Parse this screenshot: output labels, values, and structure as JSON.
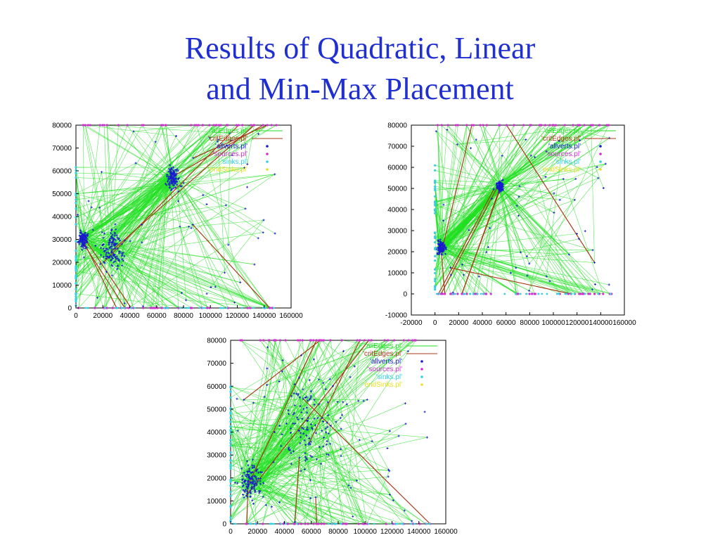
{
  "title": {
    "line1": "Results of Quadratic, Linear",
    "line2": "and Min-Max Placement"
  },
  "chart_data": [
    {
      "type": "scatter",
      "title": "",
      "xlabel": "",
      "ylabel": "",
      "xlim": [
        0,
        160000
      ],
      "ylim": [
        0,
        80000
      ],
      "xticks": [
        0,
        20000,
        40000,
        60000,
        80000,
        100000,
        120000,
        140000,
        160000
      ],
      "yticks": [
        0,
        10000,
        20000,
        30000,
        40000,
        50000,
        60000,
        70000,
        80000
      ],
      "grid": false,
      "legend_position": "top-right",
      "series": [
        {
          "name": "'allEdges.pl'",
          "color": "#22e022"
        },
        {
          "name": "'critEdges.pl'",
          "color": "#a83a1a"
        },
        {
          "name": "'allverts.pl'",
          "color": "#1a1ad0"
        },
        {
          "name": "'sources.pl'",
          "color": "#d030d0"
        },
        {
          "name": "'sinks.pl'",
          "color": "#30d0e0"
        },
        {
          "name": "'endSinks.pl'",
          "color": "#e8e020"
        }
      ],
      "clusters": [
        {
          "x": 27000,
          "y": 25000,
          "spread": 10000
        },
        {
          "x": 72000,
          "y": 57000,
          "spread": 6000
        },
        {
          "x": 5000,
          "y": 30000,
          "spread": 4000
        }
      ]
    },
    {
      "type": "scatter",
      "title": "",
      "xlabel": "",
      "ylabel": "",
      "xlim": [
        -20000,
        160000
      ],
      "ylim": [
        -10000,
        80000
      ],
      "xticks": [
        -20000,
        0,
        20000,
        40000,
        60000,
        80000,
        100000,
        120000,
        140000,
        160000
      ],
      "yticks": [
        -10000,
        0,
        10000,
        20000,
        30000,
        40000,
        50000,
        60000,
        70000,
        80000
      ],
      "grid": false,
      "legend_position": "top-right",
      "series": [
        {
          "name": "'allEdges.pl'",
          "color": "#22e022"
        },
        {
          "name": "'critEdges.pl'",
          "color": "#a83a1a"
        },
        {
          "name": "'allverts.pl'",
          "color": "#1a1ad0"
        },
        {
          "name": "'sources.pl'",
          "color": "#d030d0"
        },
        {
          "name": "'sinks.pl'",
          "color": "#30d0e0"
        },
        {
          "name": "'endSinks.pl'",
          "color": "#e8e020"
        }
      ],
      "clusters": [
        {
          "x": 5000,
          "y": 22000,
          "spread": 4000
        },
        {
          "x": 55000,
          "y": 51000,
          "spread": 3000
        }
      ]
    },
    {
      "type": "scatter",
      "title": "",
      "xlabel": "",
      "ylabel": "",
      "xlim": [
        0,
        160000
      ],
      "ylim": [
        0,
        80000
      ],
      "xticks": [
        0,
        20000,
        40000,
        60000,
        80000,
        100000,
        120000,
        140000,
        160000
      ],
      "yticks": [
        0,
        10000,
        20000,
        30000,
        40000,
        50000,
        60000,
        70000,
        80000
      ],
      "grid": false,
      "legend_position": "top-right",
      "series": [
        {
          "name": "'allEdges.pl'",
          "color": "#22e022"
        },
        {
          "name": "'critEdges.pl'",
          "color": "#a83a1a"
        },
        {
          "name": "'allverts.pl'",
          "color": "#1a1ad0"
        },
        {
          "name": "'sources.pl'",
          "color": "#d030d0"
        },
        {
          "name": "'sinks.pl'",
          "color": "#30d0e0"
        },
        {
          "name": "'endSinks.pl'",
          "color": "#e8e020"
        }
      ],
      "clusters": [
        {
          "x": 15000,
          "y": 18000,
          "spread": 9000
        },
        {
          "x": 60000,
          "y": 45000,
          "spread": 30000
        }
      ]
    }
  ]
}
